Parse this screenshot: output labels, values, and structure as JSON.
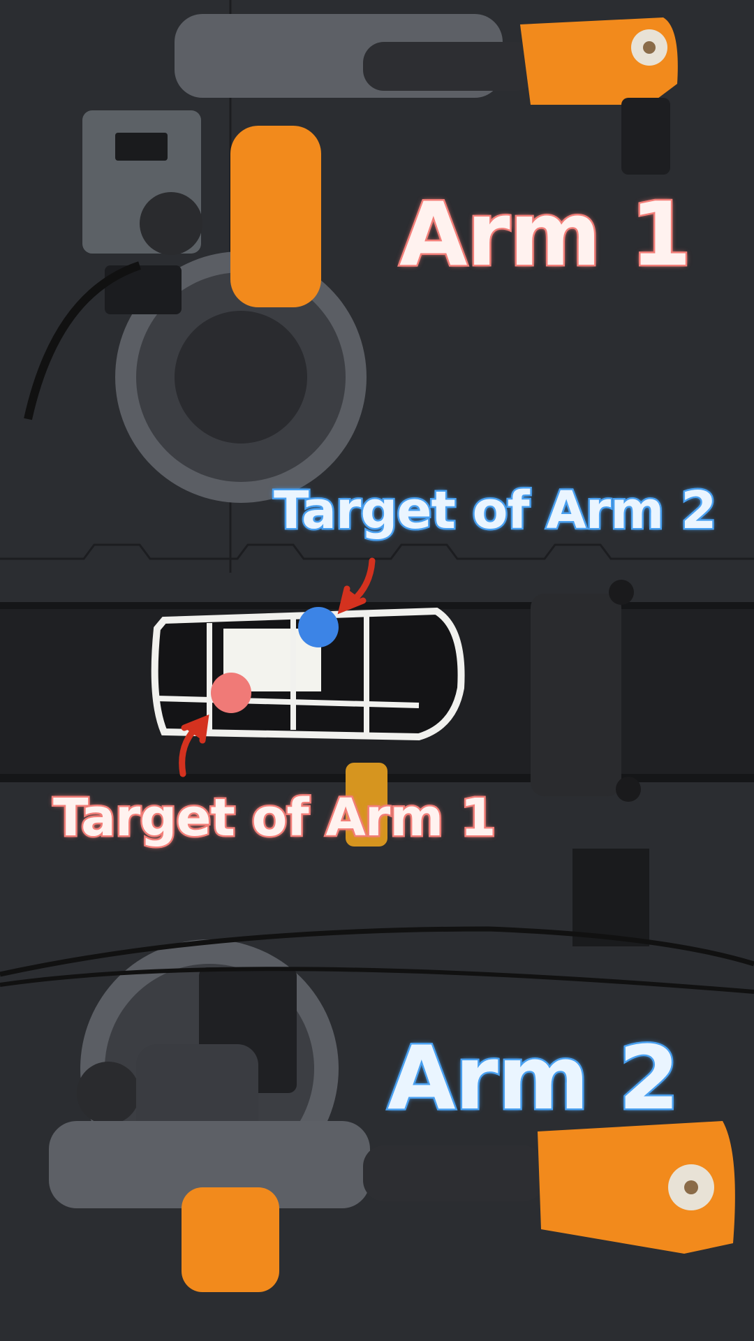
{
  "labels": {
    "arm1": "Arm 1",
    "arm2": "Arm 2",
    "target_arm2": "Target of Arm 2",
    "target_arm1": "Target of Arm 1"
  },
  "colors": {
    "arm1_accent": "#f27f79",
    "arm2_accent": "#4aa0f0",
    "arm_orange": "#f28a1c",
    "arrow_red": "#d4321f",
    "mat": "#2b2d31"
  }
}
